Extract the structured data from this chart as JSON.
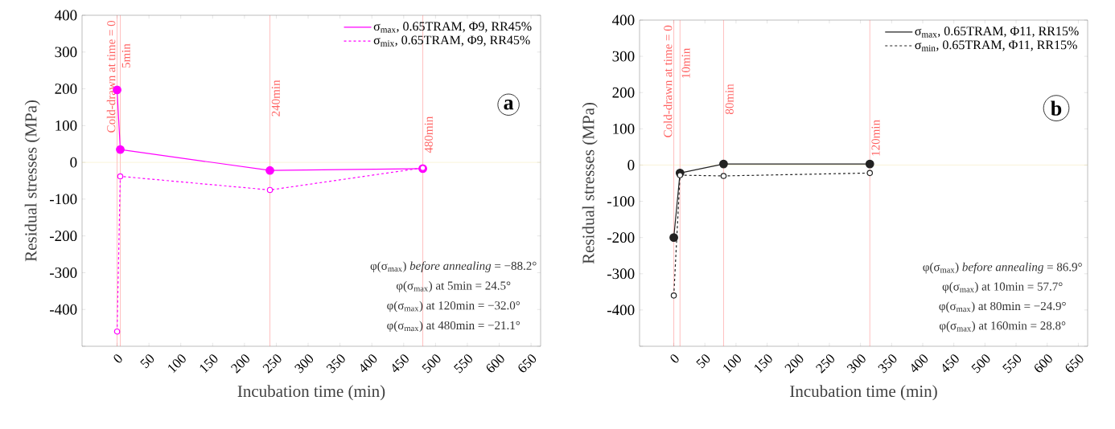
{
  "chart_data": [
    {
      "type": "line",
      "xlabel": "Incubation time (min)",
      "ylabel": "Residual stresses (MPa)",
      "x": [
        0,
        5,
        240,
        480
      ],
      "series": [
        {
          "name": "σ$_{max}$, 0.65TRAM, Φ9, RR45%",
          "color": "#ff00ff",
          "values": [
            197,
            35,
            -22,
            -17
          ],
          "line_style": "solid"
        },
        {
          "name": "σ$_{mix}$, 0.65TRAM, Φ9, RR45%",
          "color": "#ff00ff",
          "values": [
            -460,
            -38,
            -75,
            -15
          ],
          "line_style": "dashed"
        }
      ],
      "xlim": [
        -55,
        665
      ],
      "ylim": [
        -500,
        400
      ],
      "xticks": [
        0,
        50,
        100,
        150,
        200,
        250,
        300,
        350,
        400,
        450,
        500,
        550,
        600,
        650
      ],
      "yticks": [
        {
          "value": -500,
          "label": null
        },
        -400,
        -300,
        -200,
        -100,
        0,
        100,
        200,
        300,
        400
      ],
      "ref_lines": [
        {
          "axis": "x",
          "value": 0,
          "label": "Cold-drawn at time = 0",
          "color": "#ff6060"
        },
        {
          "axis": "x",
          "value": 5,
          "label": "5min",
          "color": "#ff6060"
        },
        {
          "axis": "x",
          "value": 240,
          "label": "240min",
          "color": "#ff6060"
        },
        {
          "axis": "x",
          "value": 480,
          "label": "480min",
          "color": "#ff6060"
        },
        {
          "axis": "y",
          "value": 0,
          "color": "#f3e2a0"
        }
      ],
      "annotations": [
        "a",
        "φ(σ$_{max}$) *before annealing* = −88.2°",
        "φ(σ$_{max}$) at 5min = 24.5°",
        "φ(σ$_{max}$) at 120min = −32.0°",
        "φ(σ$_{max}$) at 480min = −21.1°"
      ],
      "legend": "top right",
      "marker": "circle",
      "grid": false
    },
    {
      "type": "line",
      "xlabel": "Incubation time (min)",
      "ylabel": "Residual stresses (MPa)",
      "x": [
        0,
        10,
        80,
        315
      ],
      "series": [
        {
          "name": "σ$_{max}$, 0.65TRAM, Φ11, RR15%",
          "color": "#222222",
          "values": [
            -200,
            -22,
            3,
            3
          ],
          "line_style": "solid"
        },
        {
          "name": "σ$_{min}$, 0.65TRAM, Φ11, RR15%",
          "color": "#222222",
          "values": [
            -360,
            -28,
            -30,
            -22
          ],
          "line_style": "dashed"
        }
      ],
      "xlim": [
        -55,
        665
      ],
      "ylim": [
        -500,
        400
      ],
      "xticks": [
        0,
        50,
        100,
        150,
        200,
        250,
        300,
        350,
        400,
        450,
        500,
        550,
        600,
        650
      ],
      "yticks": [
        {
          "value": -500,
          "label": null
        },
        -400,
        -300,
        -200,
        -100,
        0,
        100,
        200,
        300,
        400
      ],
      "ref_lines": [
        {
          "axis": "x",
          "value": 0,
          "label": "Cold-drawn at time = 0",
          "color": "#ff6060"
        },
        {
          "axis": "x",
          "value": 10,
          "label": "10min",
          "color": "#ff6060"
        },
        {
          "axis": "x",
          "value": 80,
          "label": "80min",
          "color": "#ff6060"
        },
        {
          "axis": "x",
          "value": 315,
          "label": "120min",
          "color": "#ff6060"
        },
        {
          "axis": "y",
          "value": 0,
          "color": "#f3e2a0"
        }
      ],
      "annotations": [
        "b",
        "φ(σ$_{max}$) *before annealing* = 86.9°",
        "φ(σ$_{max}$) at 10min = 57.7°",
        "φ(σ$_{max}$) at 80min = −24.9°",
        "φ(σ$_{max}$) at 160min = 28.8°"
      ],
      "legend": "top right",
      "marker": "circle",
      "grid": false
    }
  ]
}
